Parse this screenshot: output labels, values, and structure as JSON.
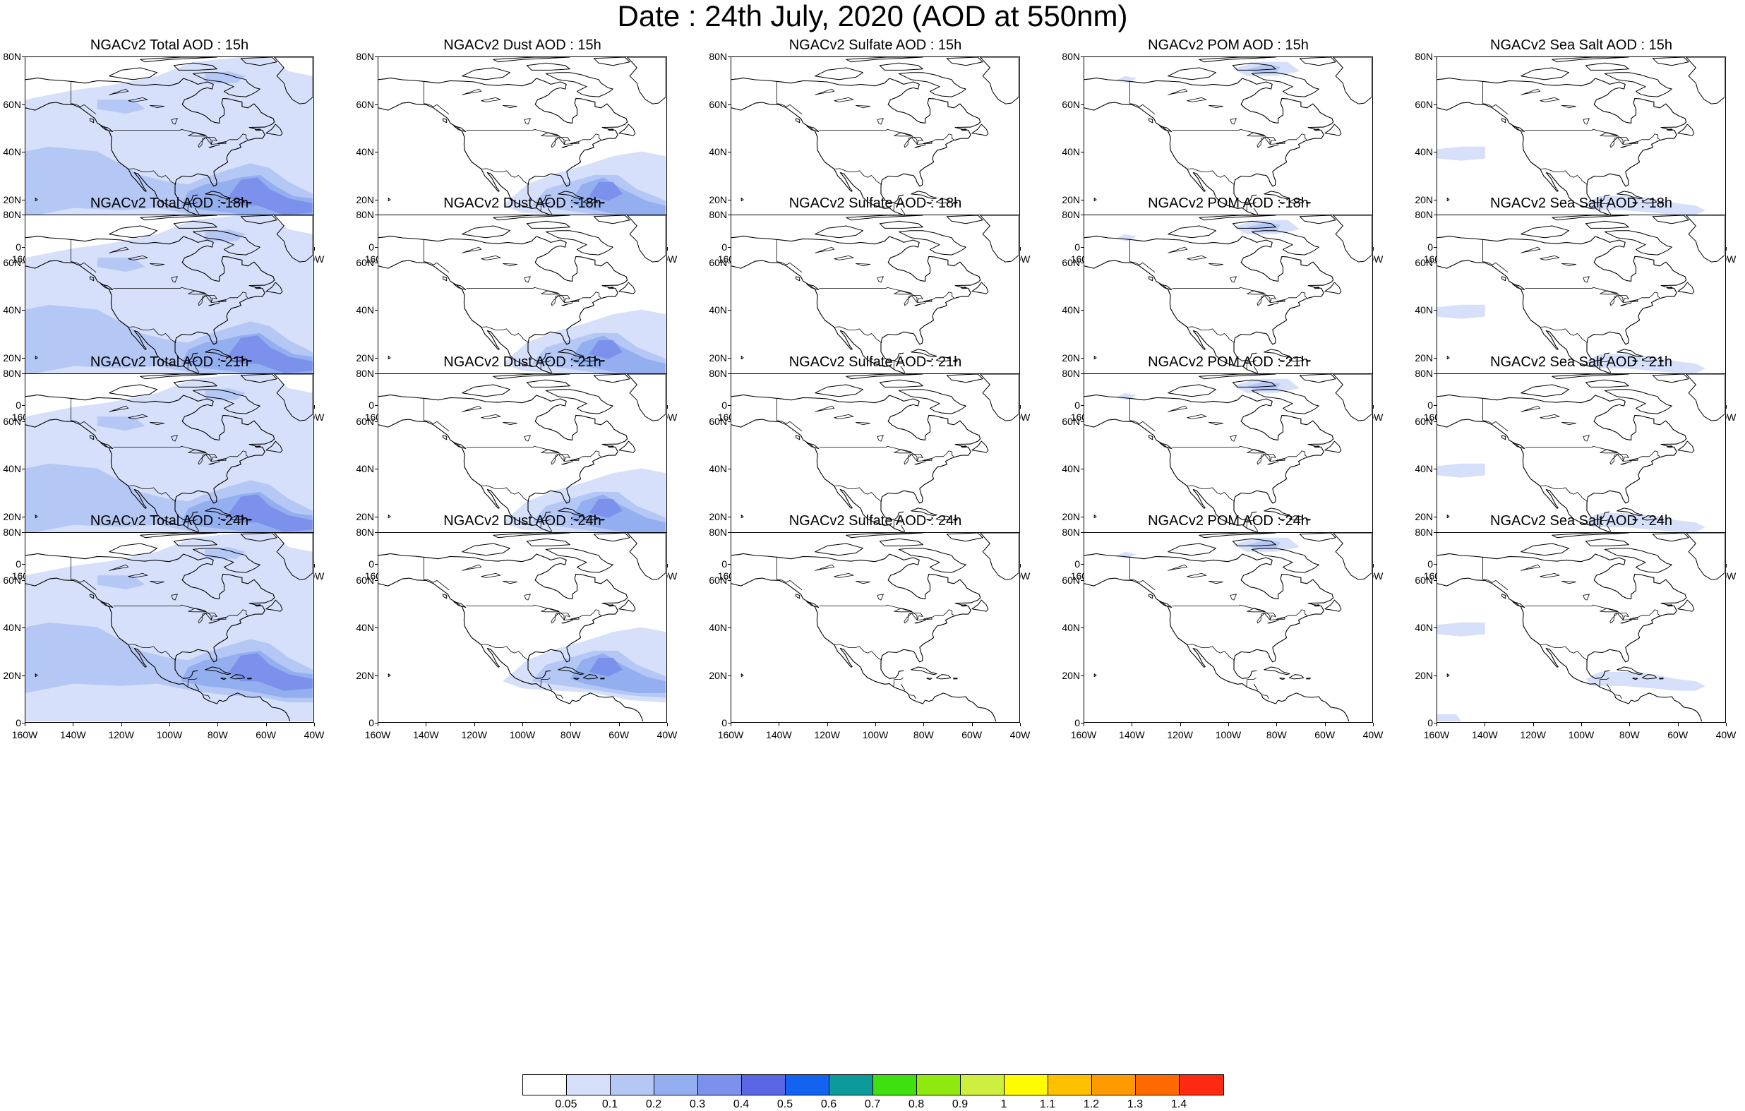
{
  "title": "Date : 24th July, 2020 (AOD at 550nm)",
  "axes": {
    "y_ticks": [
      "80N",
      "60N",
      "40N",
      "20N",
      "0"
    ],
    "x_ticks": [
      "160W",
      "140W",
      "120W",
      "100W",
      "80W",
      "60W",
      "40W"
    ],
    "lon_range": [
      -160,
      -40
    ],
    "lat_range": [
      0,
      80
    ]
  },
  "panel_titles": [
    [
      "NGACv2 Total AOD : 15h",
      "NGACv2 Dust AOD : 15h",
      "NGACv2 Sulfate AOD : 15h",
      "NGACv2 POM AOD : 15h",
      "NGACv2 Sea Salt AOD : 15h"
    ],
    [
      "NGACv2 Total AOD : 18h",
      "NGACv2 Dust AOD : 18h",
      "NGACv2 Sulfate AOD : 18h",
      "NGACv2 POM AOD : 18h",
      "NGACv2 Sea Salt AOD : 18h"
    ],
    [
      "NGACv2 Total AOD : 21h",
      "NGACv2 Dust AOD : 21h",
      "NGACv2 Sulfate AOD : 21h",
      "NGACv2 POM AOD : 21h",
      "NGACv2 Sea Salt AOD : 21h"
    ],
    [
      "NGACv2 Total AOD : 24h",
      "NGACv2 Dust AOD : 24h",
      "NGACv2 Sulfate AOD : 24h",
      "NGACv2 POM AOD : 24h",
      "NGACv2 Sea Salt  AOD : 24h"
    ]
  ],
  "panel_kinds": [
    "total",
    "dust",
    "sulfate",
    "pom",
    "seasalt"
  ],
  "colorbar": {
    "labels": [
      "0.05",
      "0.1",
      "0.2",
      "0.3",
      "0.4",
      "0.5",
      "0.6",
      "0.7",
      "0.8",
      "0.9",
      "1",
      "1.1",
      "1.2",
      "1.3",
      "1.4"
    ],
    "colors": [
      "#ffffff",
      "#d6e0fa",
      "#b5c8f5",
      "#94afef",
      "#7b91ec",
      "#5b66e4",
      "#1463f0",
      "#0d9a9a",
      "#3fe00f",
      "#8fe80e",
      "#cfef40",
      "#fffb00",
      "#ffc000",
      "#ff9a00",
      "#ff6a00",
      "#ff2a12"
    ]
  },
  "colors": {
    "light": "#d6e0fa",
    "mid": "#b5c8f5",
    "strong": "#94afef",
    "peak": "#7b91ec"
  }
}
